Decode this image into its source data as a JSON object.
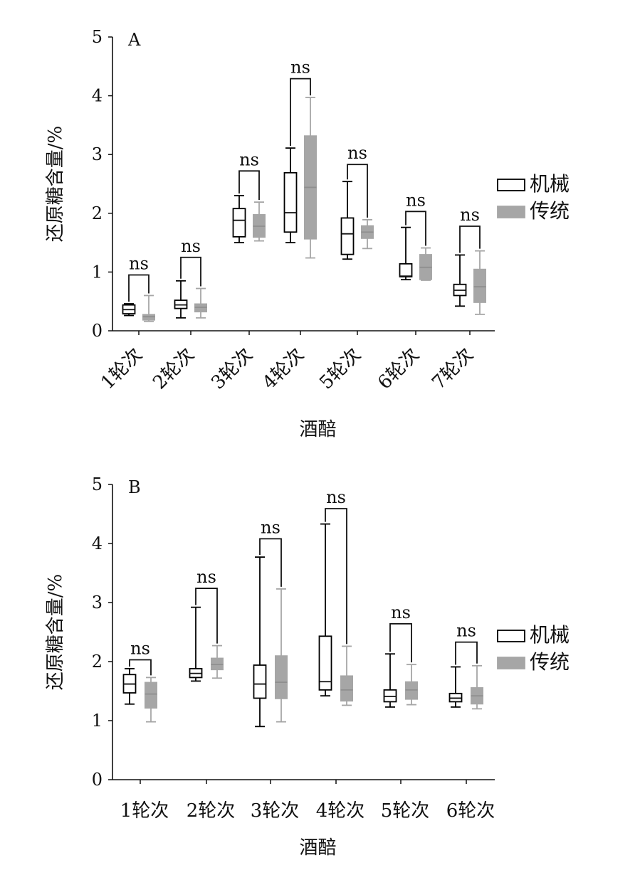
{
  "legend": {
    "items": [
      {
        "label": "机械",
        "color": "#ffffff",
        "stroke": "#000000"
      },
      {
        "label": "传统",
        "color": "#a6a6a6",
        "stroke": "#a6a6a6"
      }
    ]
  },
  "significance_label": "ns",
  "chart_data": [
    {
      "type": "boxplot",
      "panel": "A",
      "xlabel": "酒醅",
      "ylabel": "还原糖含量/%",
      "ylim": [
        0,
        5
      ],
      "yticks": [
        0,
        1,
        2,
        3,
        4,
        5
      ],
      "categories": [
        "1轮次",
        "2轮次",
        "3轮次",
        "4轮次",
        "5轮次",
        "6轮次",
        "7轮次"
      ],
      "x_label_rotation": "rotated",
      "series": [
        {
          "name": "机械",
          "boxes": [
            {
              "min": 0.26,
              "q1": 0.29,
              "median": 0.36,
              "q3": 0.44,
              "max": 0.46
            },
            {
              "min": 0.22,
              "q1": 0.38,
              "median": 0.44,
              "q3": 0.52,
              "max": 0.85
            },
            {
              "min": 1.5,
              "q1": 1.6,
              "median": 1.88,
              "q3": 2.08,
              "max": 2.3
            },
            {
              "min": 1.5,
              "q1": 1.68,
              "median": 2.01,
              "q3": 2.69,
              "max": 3.11
            },
            {
              "min": 1.22,
              "q1": 1.3,
              "median": 1.65,
              "q3": 1.92,
              "max": 2.54
            },
            {
              "min": 0.87,
              "q1": 0.92,
              "median": 0.93,
              "q3": 1.14,
              "max": 1.76
            },
            {
              "min": 0.42,
              "q1": 0.6,
              "median": 0.69,
              "q3": 0.79,
              "max": 1.29
            }
          ]
        },
        {
          "name": "传统",
          "boxes": [
            {
              "min": 0.16,
              "q1": 0.18,
              "median": 0.24,
              "q3": 0.28,
              "max": 0.6
            },
            {
              "min": 0.22,
              "q1": 0.32,
              "median": 0.4,
              "q3": 0.46,
              "max": 0.72
            },
            {
              "min": 1.53,
              "q1": 1.59,
              "median": 1.78,
              "q3": 1.98,
              "max": 2.19
            },
            {
              "min": 1.24,
              "q1": 1.56,
              "median": 2.44,
              "q3": 3.32,
              "max": 3.97
            },
            {
              "min": 1.4,
              "q1": 1.57,
              "median": 1.68,
              "q3": 1.79,
              "max": 1.89
            },
            {
              "min": 0.86,
              "q1": 0.87,
              "median": 1.08,
              "q3": 1.3,
              "max": 1.41
            },
            {
              "min": 0.28,
              "q1": 0.48,
              "median": 0.75,
              "q3": 1.05,
              "max": 1.36
            }
          ]
        }
      ],
      "annotations": [
        {
          "category": "1轮次",
          "text": "ns",
          "bracket_y": 0.95
        },
        {
          "category": "2轮次",
          "text": "ns",
          "bracket_y": 1.25
        },
        {
          "category": "3轮次",
          "text": "ns",
          "bracket_y": 2.72
        },
        {
          "category": "4轮次",
          "text": "ns",
          "bracket_y": 4.29
        },
        {
          "category": "5轮次",
          "text": "ns",
          "bracket_y": 2.83
        },
        {
          "category": "6轮次",
          "text": "ns",
          "bracket_y": 2.03
        },
        {
          "category": "7轮次",
          "text": "ns",
          "bracket_y": 1.78
        }
      ],
      "legend_position": "right"
    },
    {
      "type": "boxplot",
      "panel": "B",
      "xlabel": "酒醅",
      "ylabel": "还原糖含量/%",
      "ylim": [
        0,
        5
      ],
      "yticks": [
        0,
        1,
        2,
        3,
        4,
        5
      ],
      "categories": [
        "1轮次",
        "2轮次",
        "3轮次",
        "4轮次",
        "5轮次",
        "6轮次"
      ],
      "x_label_rotation": "horizontal",
      "series": [
        {
          "name": "机械",
          "boxes": [
            {
              "min": 1.28,
              "q1": 1.47,
              "median": 1.62,
              "q3": 1.78,
              "max": 1.88
            },
            {
              "min": 1.67,
              "q1": 1.73,
              "median": 1.8,
              "q3": 1.88,
              "max": 2.92
            },
            {
              "min": 0.9,
              "q1": 1.38,
              "median": 1.62,
              "q3": 1.94,
              "max": 3.77
            },
            {
              "min": 1.42,
              "q1": 1.52,
              "median": 1.66,
              "q3": 2.43,
              "max": 4.33
            },
            {
              "min": 1.23,
              "q1": 1.32,
              "median": 1.41,
              "q3": 1.52,
              "max": 2.13
            },
            {
              "min": 1.23,
              "q1": 1.32,
              "median": 1.38,
              "q3": 1.46,
              "max": 1.91
            }
          ]
        },
        {
          "name": "传统",
          "boxes": [
            {
              "min": 0.98,
              "q1": 1.21,
              "median": 1.45,
              "q3": 1.65,
              "max": 1.73
            },
            {
              "min": 1.72,
              "q1": 1.86,
              "median": 1.95,
              "q3": 2.06,
              "max": 2.27
            },
            {
              "min": 0.98,
              "q1": 1.37,
              "median": 1.65,
              "q3": 2.1,
              "max": 3.23
            },
            {
              "min": 1.26,
              "q1": 1.33,
              "median": 1.52,
              "q3": 1.76,
              "max": 2.26
            },
            {
              "min": 1.27,
              "q1": 1.36,
              "median": 1.52,
              "q3": 1.66,
              "max": 1.95
            },
            {
              "min": 1.2,
              "q1": 1.28,
              "median": 1.42,
              "q3": 1.56,
              "max": 1.93
            }
          ]
        }
      ],
      "annotations": [
        {
          "category": "1轮次",
          "text": "ns",
          "bracket_y": 2.03
        },
        {
          "category": "2轮次",
          "text": "ns",
          "bracket_y": 3.24
        },
        {
          "category": "3轮次",
          "text": "ns",
          "bracket_y": 4.08
        },
        {
          "category": "4轮次",
          "text": "ns",
          "bracket_y": 4.59
        },
        {
          "category": "5轮次",
          "text": "ns",
          "bracket_y": 2.64
        },
        {
          "category": "6轮次",
          "text": "ns",
          "bracket_y": 2.33
        }
      ],
      "legend_position": "right"
    }
  ]
}
